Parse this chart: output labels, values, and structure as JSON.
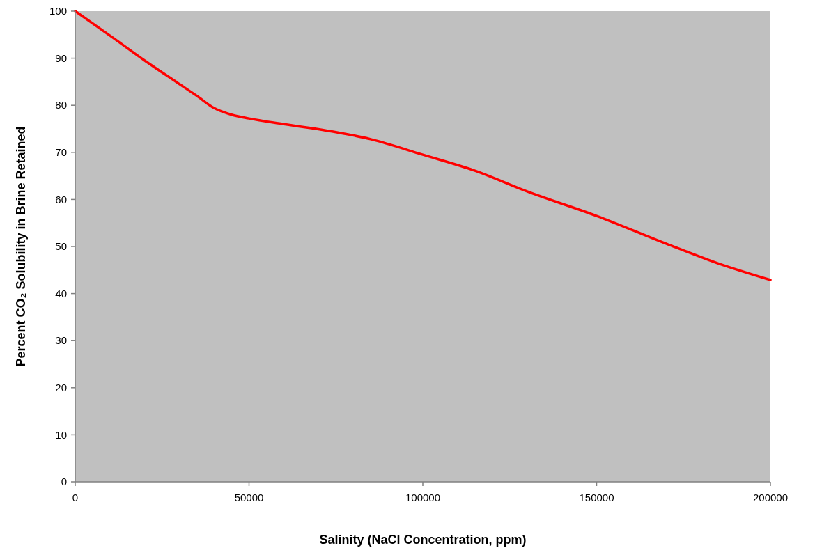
{
  "chart_data": {
    "type": "line",
    "xlabel": "Salinity (NaCl Concentration, ppm)",
    "ylabel": "Percent CO₂ Solubility in Brine Retained",
    "x": [
      0,
      10000,
      20000,
      30000,
      35000,
      40000,
      45000,
      50000,
      60000,
      75000,
      85000,
      100000,
      115000,
      130000,
      150000,
      170000,
      185000,
      200000
    ],
    "series": [
      {
        "color": "#ff0000",
        "values": [
          100,
          94.8,
          89.5,
          84.5,
          82,
          79.4,
          78,
          77.2,
          76,
          74.3,
          72.8,
          69.5,
          66.1,
          61.7,
          56.5,
          50.6,
          46.4,
          42.9
        ]
      }
    ],
    "xlim": [
      0,
      200000
    ],
    "xticks": [
      0,
      50000,
      100000,
      150000,
      200000
    ],
    "ylim": [
      0,
      100
    ],
    "yticks": [
      0,
      10,
      20,
      30,
      40,
      50,
      60,
      70,
      80,
      90,
      100
    ],
    "grid": false,
    "marker": "none",
    "line_style": "solid"
  }
}
